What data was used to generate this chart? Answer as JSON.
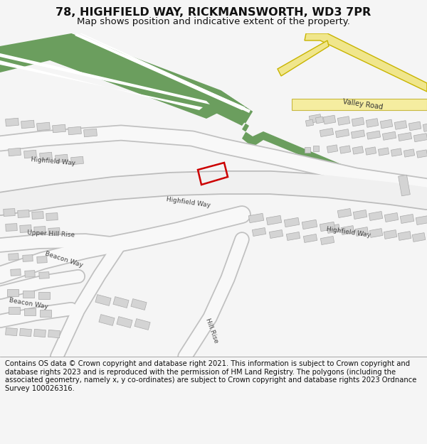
{
  "title": "78, HIGHFIELD WAY, RICKMANSWORTH, WD3 7PR",
  "subtitle": "Map shows position and indicative extent of the property.",
  "footer": "Contains OS data © Crown copyright and database right 2021. This information is subject to Crown copyright and database rights 2023 and is reproduced with the permission of HM Land Registry. The polygons (including the associated geometry, namely x, y co-ordinates) are subject to Crown copyright and database rights 2023 Ordnance Survey 100026316.",
  "bg_color": "#f5f5f5",
  "map_bg": "#ffffff",
  "building_color": "#d4d4d4",
  "building_outline": "#aaaaaa",
  "green_color": "#6b9e5e",
  "green_outline": "#5a8a4e",
  "yellow_road": "#f0e68c",
  "yellow_outline": "#c8b400",
  "road_fill": "#ffffff",
  "road_outline": "#bbbbbb",
  "plot_outline": "#cc0000",
  "plot_lw": 1.8,
  "title_fontsize": 11.5,
  "subtitle_fontsize": 9.5,
  "footer_fontsize": 7.2,
  "label_fontsize": 6.5,
  "label_color": "#444444"
}
